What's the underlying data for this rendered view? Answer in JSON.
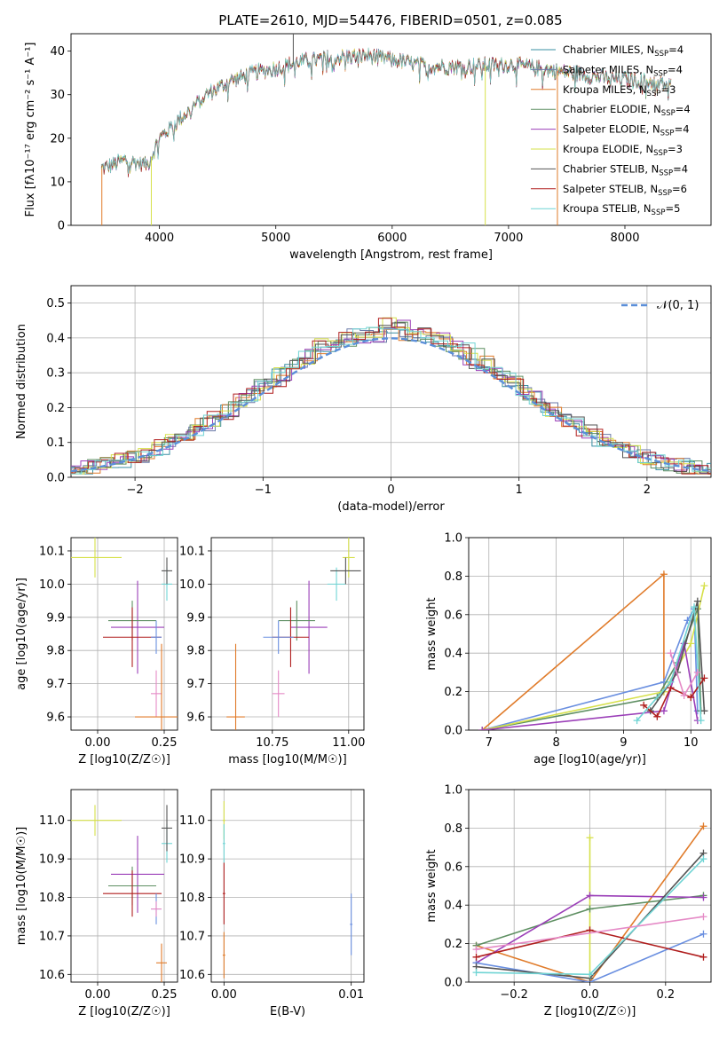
{
  "figure": {
    "title": "PLATE=2610, MJD=54476, FIBERID=0501, z=0.085"
  },
  "colors": {
    "Chabrier MILES": "#3a8fa3",
    "Salpeter MILES": "#6b7aa8",
    "Kroupa MILES": "#e07b2a",
    "Chabrier ELODIE": "#5e8f62",
    "Salpeter ELODIE": "#9b3fb8",
    "Kroupa ELODIE": "#d6e04a",
    "Chabrier STELIB": "#555555",
    "Salpeter STELIB": "#b01e1e",
    "Kroupa STELIB": "#6fd4d4",
    "normal": "#5b8fd9",
    "pink": "#e58ac6",
    "blue": "#6a8fe0"
  },
  "chart_data": [
    {
      "id": "spectrum",
      "type": "line",
      "title": "PLATE=2610, MJD=54476, FIBERID=0501, z=0.085",
      "xlabel": "wavelength [Angstrom, rest frame]",
      "ylabel": "Flux [fλ10⁻¹⁷ erg cm⁻² s⁻¹ A⁻¹]",
      "xlim": [
        3240,
        8740
      ],
      "ylim": [
        0,
        44
      ],
      "xticks": [
        4000,
        5000,
        6000,
        7000,
        8000
      ],
      "yticks": [
        0,
        10,
        20,
        30,
        40
      ],
      "legend_position": "top-right",
      "continuum_x": [
        3500,
        3700,
        3900,
        4000,
        4200,
        4400,
        4600,
        4800,
        5000,
        5200,
        5500,
        5800,
        6000,
        6300,
        6600,
        7000,
        7400,
        7800,
        8200,
        8400
      ],
      "continuum_y": [
        13,
        15,
        14,
        20,
        25,
        30,
        33,
        35,
        36,
        37.5,
        38.5,
        39,
        38,
        36.5,
        36.5,
        37,
        35.5,
        34,
        33,
        32
      ],
      "series": [
        {
          "name": "Chabrier MILES",
          "nssp": "4"
        },
        {
          "name": "Salpeter MILES",
          "nssp": "4"
        },
        {
          "name": "Kroupa MILES",
          "nssp": "3"
        },
        {
          "name": "Chabrier ELODIE",
          "nssp": "4"
        },
        {
          "name": "Salpeter ELODIE",
          "nssp": "4"
        },
        {
          "name": "Kroupa ELODIE",
          "nssp": "3"
        },
        {
          "name": "Chabrier STELIB",
          "nssp": "4"
        },
        {
          "name": "Salpeter STELIB",
          "nssp": "6"
        },
        {
          "name": "Kroupa STELIB",
          "nssp": "5"
        }
      ]
    },
    {
      "id": "residuals",
      "type": "histogram",
      "xlabel": "(data-model)/error",
      "ylabel": "Normed distribution",
      "xlim": [
        -2.5,
        2.5
      ],
      "ylim": [
        0,
        0.55
      ],
      "xticks": [
        -2,
        -1,
        0,
        1,
        2
      ],
      "yticks": [
        0.0,
        0.1,
        0.2,
        0.3,
        0.4,
        0.5
      ],
      "grid": true,
      "reference": {
        "name": "𝒩(0, 1)",
        "mean": 0,
        "sigma": 1
      },
      "bin_width": 0.1
    },
    {
      "id": "age_vs_Z",
      "type": "errorbar",
      "xlabel": "Z [log10(Z/Z☉)]",
      "ylabel": "age [log10(age/yr)]",
      "xlim": [
        -0.1,
        0.3
      ],
      "ylim": [
        9.56,
        10.14
      ],
      "xticks": [
        0.0,
        0.25
      ],
      "yticks": [
        9.6,
        9.7,
        9.8,
        9.9,
        10.0,
        10.1
      ],
      "grid": true
    },
    {
      "id": "age_vs_mass",
      "type": "errorbar",
      "xlabel": "mass [log10(M/M☉)]",
      "xlim": [
        10.55,
        11.05
      ],
      "ylim": [
        9.56,
        10.14
      ],
      "xticks": [
        10.75,
        11.0
      ],
      "yticks": [
        9.6,
        9.7,
        9.8,
        9.9,
        10.0,
        10.1
      ],
      "grid": true
    },
    {
      "id": "weight_vs_age",
      "type": "line",
      "xlabel": "age [log10(age/yr)]",
      "ylabel": "mass weight",
      "xlim": [
        6.7,
        10.3
      ],
      "ylim": [
        0,
        1
      ],
      "xticks": [
        7,
        8,
        9,
        10
      ],
      "yticks": [
        0.0,
        0.2,
        0.4,
        0.6,
        0.8,
        1.0
      ],
      "grid": true
    },
    {
      "id": "mass_vs_Z",
      "type": "errorbar",
      "xlabel": "Z [log10(Z/Z☉)]",
      "ylabel": "mass [log10(M/M☉)]",
      "xlim": [
        -0.1,
        0.3
      ],
      "ylim": [
        10.58,
        11.08
      ],
      "xticks": [
        0.0,
        0.25
      ],
      "yticks": [
        10.6,
        10.7,
        10.8,
        10.9,
        11.0
      ],
      "grid": true
    },
    {
      "id": "mass_vs_ebv",
      "type": "errorbar",
      "xlabel": "E(B-V)",
      "xlim": [
        -0.001,
        0.011
      ],
      "ylim": [
        10.58,
        11.08
      ],
      "xticks": [
        0.0,
        0.01
      ],
      "yticks": [
        10.6,
        10.7,
        10.8,
        10.9,
        11.0
      ],
      "grid": true
    },
    {
      "id": "weight_vs_Z",
      "type": "line",
      "xlabel": "Z [log10(Z/Z☉)]",
      "ylabel": "mass weight",
      "xlim": [
        -0.32,
        0.32
      ],
      "ylim": [
        0,
        1
      ],
      "xticks": [
        -0.2,
        0.0,
        0.2
      ],
      "yticks": [
        0.0,
        0.2,
        0.4,
        0.6,
        0.8,
        1.0
      ],
      "grid": true
    }
  ],
  "points": {
    "age_Z": [
      {
        "c": "Kroupa ELODIE",
        "x": -0.01,
        "y": 10.08,
        "xe": 0.1,
        "ye": 0.06
      },
      {
        "c": "Kroupa STELIB",
        "x": 0.26,
        "y": 10.0,
        "xe": 0.02,
        "ye": 0.05
      },
      {
        "c": "Chabrier STELIB",
        "x": 0.26,
        "y": 10.04,
        "xe": 0.02,
        "ye": 0.04
      },
      {
        "c": "Salpeter ELODIE",
        "x": 0.15,
        "y": 9.87,
        "xe": 0.1,
        "ye": 0.14
      },
      {
        "c": "Chabrier ELODIE",
        "x": 0.13,
        "y": 9.89,
        "xe": 0.09,
        "ye": 0.06
      },
      {
        "c": "Salpeter STELIB",
        "x": 0.13,
        "y": 9.84,
        "xe": 0.11,
        "ye": 0.09
      },
      {
        "c": "blue",
        "x": 0.22,
        "y": 9.84,
        "xe": 0.02,
        "ye": 0.05
      },
      {
        "c": "pink",
        "x": 0.22,
        "y": 9.67,
        "xe": 0.02,
        "ye": 0.07
      },
      {
        "c": "Kroupa MILES",
        "x": 0.24,
        "y": 9.6,
        "xe": 0.1,
        "ye": 0.22
      }
    ],
    "age_mass": [
      {
        "c": "Kroupa ELODIE",
        "x": 11.0,
        "y": 10.08,
        "xe": 0.02,
        "ye": 0.06
      },
      {
        "c": "Kroupa STELIB",
        "x": 10.96,
        "y": 10.0,
        "xe": 0.03,
        "ye": 0.05
      },
      {
        "c": "Chabrier STELIB",
        "x": 10.99,
        "y": 10.04,
        "xe": 0.05,
        "ye": 0.04
      },
      {
        "c": "Salpeter ELODIE",
        "x": 10.87,
        "y": 9.87,
        "xe": 0.06,
        "ye": 0.14
      },
      {
        "c": "Chabrier ELODIE",
        "x": 10.83,
        "y": 9.89,
        "xe": 0.06,
        "ye": 0.06
      },
      {
        "c": "Salpeter STELIB",
        "x": 10.81,
        "y": 9.84,
        "xe": 0.06,
        "ye": 0.09
      },
      {
        "c": "blue",
        "x": 10.77,
        "y": 9.84,
        "xe": 0.05,
        "ye": 0.05
      },
      {
        "c": "pink",
        "x": 10.77,
        "y": 9.67,
        "xe": 0.02,
        "ye": 0.07
      },
      {
        "c": "Kroupa MILES",
        "x": 10.63,
        "y": 9.6,
        "xe": 0.03,
        "ye": 0.22
      }
    ],
    "mass_Z": [
      {
        "c": "Kroupa ELODIE",
        "x": -0.01,
        "y": 11.0,
        "xe": 0.1,
        "ye": 0.04
      },
      {
        "c": "Kroupa STELIB",
        "x": 0.26,
        "y": 10.94,
        "xe": 0.02,
        "ye": 0.05
      },
      {
        "c": "Chabrier STELIB",
        "x": 0.26,
        "y": 10.98,
        "xe": 0.02,
        "ye": 0.06
      },
      {
        "c": "Salpeter ELODIE",
        "x": 0.15,
        "y": 10.86,
        "xe": 0.1,
        "ye": 0.1
      },
      {
        "c": "Chabrier ELODIE",
        "x": 0.13,
        "y": 10.83,
        "xe": 0.09,
        "ye": 0.05
      },
      {
        "c": "Salpeter STELIB",
        "x": 0.13,
        "y": 10.81,
        "xe": 0.11,
        "ye": 0.06
      },
      {
        "c": "blue",
        "x": 0.22,
        "y": 10.77,
        "xe": 0.02,
        "ye": 0.04
      },
      {
        "c": "pink",
        "x": 0.22,
        "y": 10.77,
        "xe": 0.02,
        "ye": 0.02
      },
      {
        "c": "Kroupa MILES",
        "x": 0.24,
        "y": 10.63,
        "xe": 0.02,
        "ye": 0.05
      }
    ],
    "mass_ebv": [
      {
        "c": "Kroupa ELODIE",
        "x": 0.0,
        "y": 11.0,
        "xe": 0.0001,
        "ye": 0.05
      },
      {
        "c": "Kroupa STELIB",
        "x": 0.0,
        "y": 10.94,
        "xe": 0.0001,
        "ye": 0.05
      },
      {
        "c": "Salpeter STELIB",
        "x": 0.0,
        "y": 10.81,
        "xe": 0.0001,
        "ye": 0.08
      },
      {
        "c": "Kroupa MILES",
        "x": 0.0,
        "y": 10.65,
        "xe": 0.0001,
        "ye": 0.06
      },
      {
        "c": "blue",
        "x": 0.01,
        "y": 10.73,
        "xe": 0.0001,
        "ye": 0.08
      }
    ],
    "weight_age": [
      {
        "c": "Kroupa MILES",
        "x": [
          6.9,
          9.6,
          9.6
        ],
        "y": [
          0.0,
          0.81,
          0.2
        ]
      },
      {
        "c": "blue",
        "x": [
          6.9,
          9.6,
          9.95,
          10.05,
          10.1
        ],
        "y": [
          0.0,
          0.25,
          0.57,
          0.63,
          0.1
        ]
      },
      {
        "c": "Chabrier ELODIE",
        "x": [
          6.9,
          9.5,
          9.8,
          10.1,
          10.15
        ],
        "y": [
          0.0,
          0.17,
          0.35,
          0.63,
          0.1
        ]
      },
      {
        "c": "Kroupa ELODIE",
        "x": [
          6.9,
          9.6,
          10.0,
          10.2
        ],
        "y": [
          0.0,
          0.2,
          0.45,
          0.75
        ]
      },
      {
        "c": "Salpeter ELODIE",
        "x": [
          6.9,
          9.6,
          9.9,
          10.1
        ],
        "y": [
          0.0,
          0.1,
          0.45,
          0.05
        ]
      },
      {
        "c": "Chabrier STELIB",
        "x": [
          9.4,
          9.8,
          10.1,
          10.2
        ],
        "y": [
          0.1,
          0.3,
          0.67,
          0.1
        ]
      },
      {
        "c": "Salpeter STELIB",
        "x": [
          9.3,
          9.5,
          9.7,
          10.0,
          10.2
        ],
        "y": [
          0.13,
          0.07,
          0.22,
          0.17,
          0.27
        ]
      },
      {
        "c": "Kroupa STELIB",
        "x": [
          9.2,
          9.7,
          10.05,
          10.15
        ],
        "y": [
          0.05,
          0.25,
          0.64,
          0.05
        ]
      },
      {
        "c": "pink",
        "x": [
          9.7,
          9.9,
          10.1
        ],
        "y": [
          0.4,
          0.18,
          0.3
        ]
      }
    ],
    "weight_Z": [
      {
        "c": "Kroupa MILES",
        "x": [
          -0.3,
          0.0,
          0.3
        ],
        "y": [
          0.19,
          0.0,
          0.81
        ]
      },
      {
        "c": "Kroupa ELODIE",
        "x": [
          0.0,
          0.0
        ],
        "y": [
          0.02,
          0.75
        ]
      },
      {
        "c": "Chabrier ELODIE",
        "x": [
          -0.3,
          0.0,
          0.3
        ],
        "y": [
          0.19,
          0.38,
          0.45
        ]
      },
      {
        "c": "Salpeter ELODIE",
        "x": [
          -0.3,
          0.0,
          0.3
        ],
        "y": [
          0.1,
          0.45,
          0.44
        ]
      },
      {
        "c": "blue",
        "x": [
          -0.3,
          0.0,
          0.3
        ],
        "y": [
          0.1,
          0.0,
          0.25
        ]
      },
      {
        "c": "Chabrier STELIB",
        "x": [
          -0.3,
          0.0,
          0.3
        ],
        "y": [
          0.08,
          0.02,
          0.67
        ]
      },
      {
        "c": "Salpeter STELIB",
        "x": [
          -0.3,
          0.0,
          0.3
        ],
        "y": [
          0.13,
          0.27,
          0.13
        ]
      },
      {
        "c": "Kroupa STELIB",
        "x": [
          -0.3,
          0.0,
          0.3
        ],
        "y": [
          0.05,
          0.04,
          0.64
        ]
      },
      {
        "c": "pink",
        "x": [
          -0.3,
          0.3
        ],
        "y": [
          0.17,
          0.34
        ]
      }
    ]
  }
}
